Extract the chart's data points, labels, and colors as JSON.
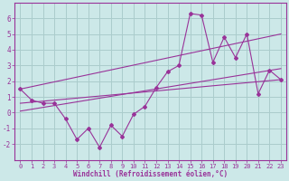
{
  "xlabel": "Windchill (Refroidissement éolien,°C)",
  "bg_color": "#cce8e8",
  "grid_color": "#aacccc",
  "line_color": "#993399",
  "x_values": [
    0,
    1,
    2,
    3,
    4,
    5,
    6,
    7,
    8,
    9,
    10,
    11,
    12,
    13,
    14,
    15,
    16,
    17,
    18,
    19,
    20,
    21,
    22,
    23
  ],
  "y_data": [
    1.5,
    0.8,
    0.6,
    0.6,
    -0.4,
    -1.7,
    -1.0,
    -2.2,
    -0.8,
    -1.5,
    -0.1,
    0.4,
    1.6,
    2.6,
    3.0,
    6.3,
    6.2,
    3.2,
    4.8,
    3.5,
    5.0,
    1.2,
    2.7,
    2.1
  ],
  "ylim": [
    -3,
    7
  ],
  "xlim": [
    -0.5,
    23.5
  ],
  "yticks": [
    -2,
    -1,
    0,
    1,
    2,
    3,
    4,
    5,
    6
  ],
  "xticks": [
    0,
    1,
    2,
    3,
    4,
    5,
    6,
    7,
    8,
    9,
    10,
    11,
    12,
    13,
    14,
    15,
    16,
    17,
    18,
    19,
    20,
    21,
    22,
    23
  ],
  "upper_line": [
    1.5,
    5.0
  ],
  "lower_line": [
    0.6,
    2.1
  ],
  "trend_line": [
    0.1,
    2.8
  ]
}
